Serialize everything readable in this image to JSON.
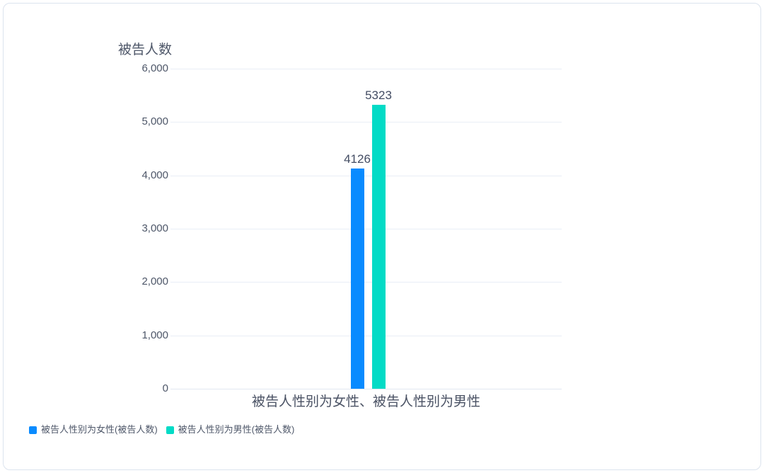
{
  "chart_data": {
    "type": "bar",
    "y_axis_title": "被告人数",
    "categories": [
      "被告人性别为女性、被告人性别为男性"
    ],
    "series": [
      {
        "name": "被告人性别为女性(被告人数)",
        "color": "#098bff",
        "values": [
          4126
        ]
      },
      {
        "name": "被告人性别为男性(被告人数)",
        "color": "#03dbc6",
        "values": [
          5323
        ]
      }
    ],
    "ylim": [
      0,
      6000
    ],
    "y_ticks": [
      {
        "value": 6000,
        "label": "6,000"
      },
      {
        "value": 5000,
        "label": "5,000"
      },
      {
        "value": 4000,
        "label": "4,000"
      },
      {
        "value": 3000,
        "label": "3,000"
      },
      {
        "value": 2000,
        "label": "2,000"
      },
      {
        "value": 1000,
        "label": "1,000"
      },
      {
        "value": 0,
        "label": "0"
      }
    ],
    "grid": "horizontal-only",
    "legend_position": "bottom-left",
    "data_labels_shown": true
  },
  "colors": {
    "bar_female": "#098bff",
    "bar_male": "#03dbc6",
    "gridline": "#e9eef6",
    "axis_line": "#e2e8f1",
    "tick_text": "#4e5769",
    "value_label_text": "#434c63",
    "card_border": "#dce3ee",
    "background": "#ffffff"
  }
}
